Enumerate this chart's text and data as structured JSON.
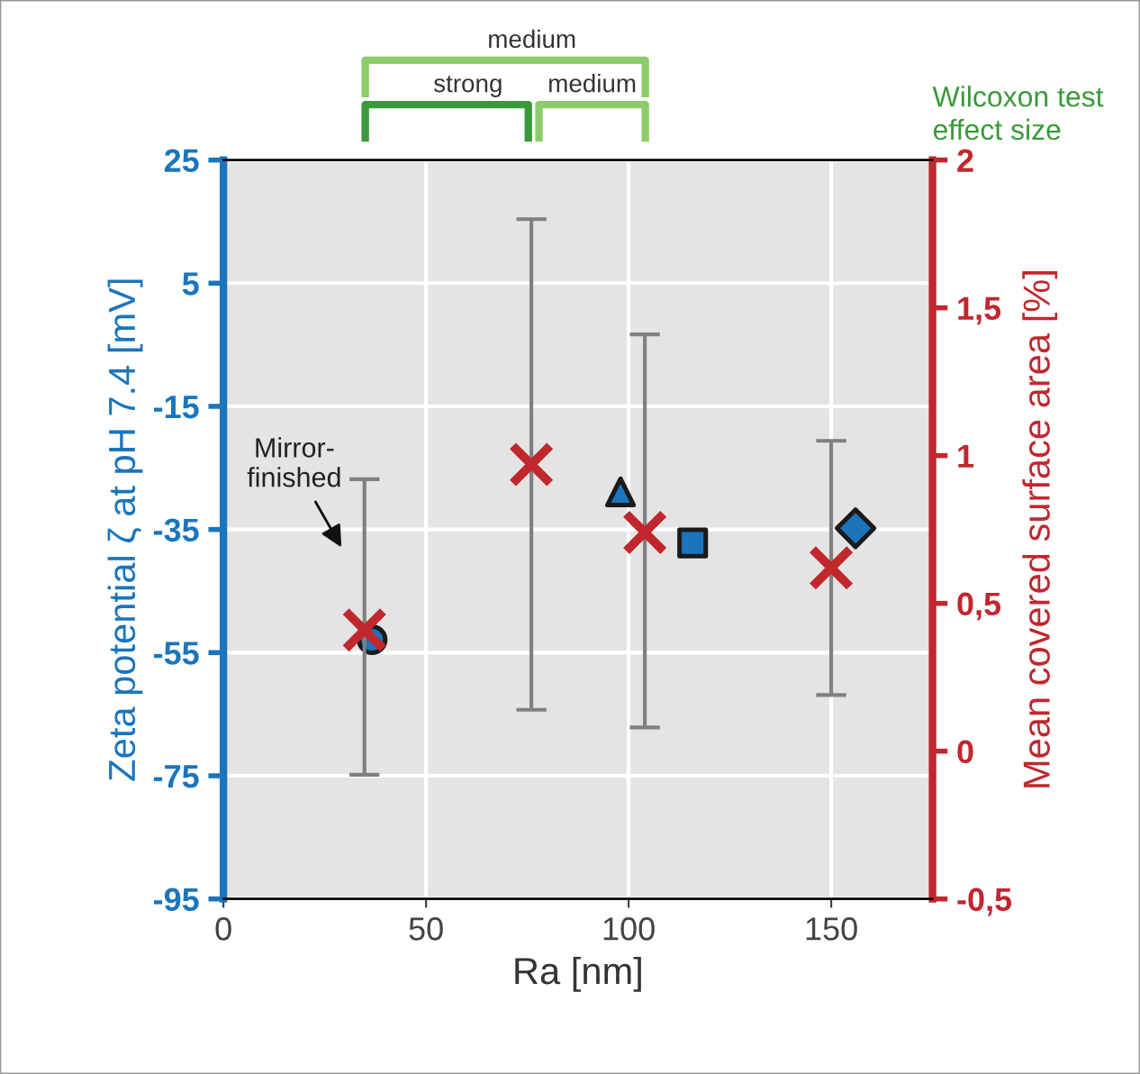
{
  "chart_data": {
    "type": "scatter",
    "xlabel": "Ra [nm]",
    "ylabel": "Zeta potential ζ at pH 7.4 [mV]",
    "y2label": "Mean covered surface area [%]",
    "xlim": [
      0,
      175
    ],
    "xticks": [
      0,
      50,
      100,
      150
    ],
    "ylim": [
      -95,
      25
    ],
    "yticks": [
      -95,
      -75,
      -55,
      -35,
      -15,
      5,
      25
    ],
    "y2lim": [
      -0.5,
      2
    ],
    "y2ticks": [
      {
        "value": -0.5,
        "label": "-0,5"
      },
      {
        "value": 0,
        "label": "0"
      },
      {
        "value": 0.5,
        "label": "0,5"
      },
      {
        "value": 1,
        "label": "1"
      },
      {
        "value": 1.5,
        "label": "1,5"
      },
      {
        "value": 2,
        "label": "2"
      }
    ],
    "grid": true,
    "series": [
      {
        "marker": "circle",
        "color": "#1a75bc",
        "x": [
          36.7
        ],
        "values": [
          -52.9
        ]
      },
      {
        "marker": "triangle",
        "color": "#1a75bc",
        "x": [
          98
        ],
        "values": [
          -28.9
        ]
      },
      {
        "marker": "square",
        "color": "#1a75bc",
        "x": [
          115.8
        ],
        "values": [
          -37.2
        ]
      },
      {
        "marker": "diamond",
        "color": "#1a75bc",
        "x": [
          156
        ],
        "values": [
          -34.8
        ]
      },
      {
        "marker": "cross",
        "color": "#c1272d",
        "axis": "y2",
        "x": [
          34.8,
          76,
          104,
          150
        ],
        "values": [
          0.41,
          0.97,
          0.74,
          0.62
        ],
        "errors": [
          [
            -0.08,
            0.92
          ],
          [
            0.14,
            1.8
          ],
          [
            0.08,
            1.41
          ],
          [
            0.19,
            1.05
          ]
        ]
      }
    ],
    "annotations": [
      "medium",
      "strong",
      "medium",
      "Wilcoxon test\neffect size",
      "Mirror-\nfinished"
    ]
  }
}
